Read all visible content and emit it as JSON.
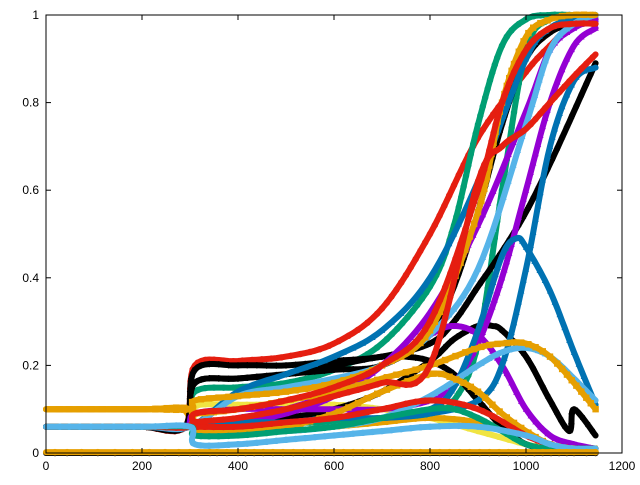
{
  "chart_data": {
    "type": "line",
    "title": "",
    "xlabel": "",
    "ylabel": "",
    "xlim": [
      0,
      1200
    ],
    "ylim": [
      0,
      1
    ],
    "x_ticks": [
      0,
      200,
      400,
      600,
      800,
      1000,
      1200
    ],
    "x_tick_labels": [
      "0",
      "200",
      "400",
      "600",
      "800",
      "1000",
      "1200"
    ],
    "y_ticks": [
      0,
      0.2,
      0.4,
      0.6,
      0.8,
      1
    ],
    "y_tick_labels": [
      "0",
      "0.2",
      "0.4",
      "0.6",
      "0.8",
      "1"
    ],
    "grid": false,
    "legend": "none",
    "colors": {
      "purple": "#9400d3",
      "green": "#009e73",
      "skyblue": "#56b4e9",
      "orange": "#e69f00",
      "yellow": "#f0e442",
      "blue": "#0072b2",
      "red": "#e51e10",
      "black": "#000000"
    },
    "series": [
      {
        "color": "#f0e442",
        "marker": "circle",
        "x": [
          0,
          100,
          200,
          280,
          300,
          320,
          400,
          500,
          600,
          700,
          800,
          900,
          1000,
          1050,
          1100,
          1145
        ],
        "y": [
          0.1,
          0.1,
          0.1,
          0.1,
          0.09,
          0.11,
          0.11,
          0.11,
          0.11,
          0.1,
          0.08,
          0.05,
          0.02,
          0.01,
          0.01,
          0.01
        ]
      },
      {
        "color": "#e69f00",
        "marker": "circle",
        "x": [
          0,
          100,
          200,
          280,
          300,
          320,
          400,
          500,
          600,
          700,
          800,
          900,
          1000,
          1050,
          1100,
          1145
        ],
        "y": [
          0.1,
          0.1,
          0.1,
          0.1,
          0.08,
          0.05,
          0.05,
          0.05,
          0.06,
          0.07,
          0.08,
          0.07,
          0.04,
          0.02,
          0.01,
          0.01
        ]
      },
      {
        "color": "#e51e10",
        "marker": "circle",
        "x": [
          0,
          100,
          200,
          290,
          310,
          400,
          500,
          600,
          700,
          800,
          900,
          1000,
          1050,
          1100,
          1145
        ],
        "y": [
          0.06,
          0.06,
          0.06,
          0.06,
          0.2,
          0.21,
          0.22,
          0.25,
          0.33,
          0.5,
          0.72,
          0.87,
          0.93,
          0.98,
          0.98
        ]
      },
      {
        "color": "#009e73",
        "marker": "circle",
        "x": [
          0,
          100,
          200,
          290,
          310,
          400,
          500,
          600,
          700,
          800,
          850,
          900,
          950,
          1000,
          1050,
          1100,
          1145
        ],
        "y": [
          0.06,
          0.06,
          0.06,
          0.06,
          0.14,
          0.15,
          0.16,
          0.19,
          0.25,
          0.38,
          0.52,
          0.75,
          0.93,
          0.99,
          1,
          1,
          1
        ]
      },
      {
        "color": "#009e73",
        "marker": "circle",
        "x": [
          0,
          100,
          200,
          290,
          310,
          400,
          500,
          600,
          700,
          800,
          850,
          900,
          950,
          1000,
          1050,
          1100,
          1145
        ],
        "y": [
          0.06,
          0.06,
          0.06,
          0.06,
          0.06,
          0.07,
          0.07,
          0.07,
          0.08,
          0.09,
          0.12,
          0.25,
          0.6,
          0.92,
          0.99,
          0.99,
          0.99
        ]
      },
      {
        "color": "#000000",
        "marker": "star",
        "x": [
          0,
          100,
          200,
          290,
          310,
          400,
          500,
          600,
          700,
          800,
          850,
          900,
          950,
          1000,
          1050,
          1100,
          1145
        ],
        "y": [
          0.06,
          0.06,
          0.06,
          0.06,
          0.16,
          0.17,
          0.18,
          0.19,
          0.2,
          0.27,
          0.38,
          0.55,
          0.75,
          0.9,
          0.96,
          0.98,
          0.98
        ]
      },
      {
        "color": "#000000",
        "marker": "star",
        "x": [
          0,
          100,
          200,
          290,
          310,
          400,
          500,
          600,
          700,
          800,
          850,
          900,
          950,
          1000,
          1050,
          1100,
          1145
        ],
        "y": [
          0.06,
          0.06,
          0.06,
          0.06,
          0.19,
          0.2,
          0.2,
          0.21,
          0.22,
          0.25,
          0.3,
          0.38,
          0.46,
          0.55,
          0.66,
          0.78,
          0.89
        ]
      },
      {
        "color": "#000000",
        "marker": "star",
        "x": [
          0,
          100,
          200,
          290,
          310,
          400,
          500,
          600,
          700,
          750,
          800,
          850,
          900,
          950,
          1000,
          1050,
          1100,
          1145
        ],
        "y": [
          0.06,
          0.06,
          0.06,
          0.06,
          0.16,
          0.17,
          0.18,
          0.2,
          0.22,
          0.22,
          0.21,
          0.18,
          0.12,
          0.06,
          0.02,
          0.01,
          0.01,
          0.01
        ]
      },
      {
        "color": "#000000",
        "marker": "star",
        "x": [
          0,
          100,
          200,
          300,
          400,
          500,
          600,
          700,
          800,
          850,
          900,
          930,
          950,
          1000,
          1050,
          1090,
          1100,
          1145
        ],
        "y": [
          0.06,
          0.06,
          0.06,
          0.06,
          0.07,
          0.08,
          0.1,
          0.14,
          0.21,
          0.26,
          0.29,
          0.29,
          0.28,
          0.22,
          0.12,
          0.05,
          0.1,
          0.04
        ]
      },
      {
        "color": "#9400d3",
        "marker": "triangle",
        "x": [
          0,
          100,
          200,
          290,
          310,
          400,
          500,
          600,
          700,
          800,
          850,
          900,
          950,
          1000,
          1050,
          1100,
          1145
        ],
        "y": [
          0.06,
          0.06,
          0.06,
          0.06,
          0.09,
          0.1,
          0.1,
          0.1,
          0.1,
          0.12,
          0.16,
          0.25,
          0.4,
          0.6,
          0.8,
          0.93,
          0.97
        ]
      },
      {
        "color": "#9400d3",
        "marker": "triangle",
        "x": [
          0,
          100,
          200,
          300,
          400,
          500,
          600,
          700,
          800,
          850,
          900,
          950,
          1000,
          1050,
          1100,
          1145
        ],
        "y": [
          0.06,
          0.06,
          0.06,
          0.06,
          0.08,
          0.1,
          0.14,
          0.2,
          0.27,
          0.29,
          0.27,
          0.2,
          0.1,
          0.04,
          0.02,
          0.01
        ]
      },
      {
        "color": "#9400d3",
        "marker": "triangle",
        "x": [
          0,
          200,
          300,
          400,
          500,
          600,
          700,
          800,
          900,
          1000,
          1050,
          1100,
          1145
        ],
        "y": [
          0.06,
          0.06,
          0.06,
          0.07,
          0.09,
          0.13,
          0.2,
          0.32,
          0.52,
          0.78,
          0.92,
          0.97,
          0.99
        ]
      },
      {
        "color": "#0072b2",
        "marker": "triangle",
        "x": [
          0,
          100,
          200,
          300,
          400,
          500,
          600,
          700,
          800,
          850,
          900,
          950,
          980,
          1000,
          1050,
          1100,
          1145
        ],
        "y": [
          0.06,
          0.06,
          0.06,
          0.06,
          0.07,
          0.07,
          0.08,
          0.08,
          0.1,
          0.15,
          0.28,
          0.45,
          0.49,
          0.47,
          0.37,
          0.23,
          0.11
        ]
      },
      {
        "color": "#0072b2",
        "marker": "triangle",
        "x": [
          0,
          200,
          300,
          400,
          500,
          600,
          700,
          800,
          900,
          950,
          1000,
          1050,
          1100,
          1145
        ],
        "y": [
          0.06,
          0.06,
          0.06,
          0.07,
          0.07,
          0.08,
          0.08,
          0.09,
          0.12,
          0.2,
          0.42,
          0.7,
          0.85,
          0.88
        ]
      },
      {
        "color": "#0072b2",
        "marker": "triangle",
        "x": [
          0,
          200,
          300,
          400,
          500,
          600,
          700,
          800,
          900,
          1000,
          1050,
          1100,
          1145
        ],
        "y": [
          0.06,
          0.06,
          0.06,
          0.14,
          0.18,
          0.22,
          0.28,
          0.4,
          0.62,
          0.9,
          0.97,
          0.99,
          1
        ]
      },
      {
        "color": "#56b4e9",
        "marker": "triangle",
        "x": [
          0,
          100,
          200,
          300,
          400,
          500,
          600,
          700,
          800,
          900,
          950,
          1000,
          1050,
          1100,
          1145
        ],
        "y": [
          0.06,
          0.06,
          0.06,
          0.06,
          0.05,
          0.05,
          0.06,
          0.08,
          0.13,
          0.2,
          0.23,
          0.24,
          0.22,
          0.17,
          0.12
        ]
      },
      {
        "color": "#56b4e9",
        "marker": "triangle",
        "x": [
          0,
          200,
          300,
          400,
          500,
          600,
          700,
          800,
          900,
          1000,
          1050,
          1100,
          1145
        ],
        "y": [
          0.06,
          0.06,
          0.06,
          0.13,
          0.15,
          0.17,
          0.2,
          0.27,
          0.42,
          0.75,
          0.92,
          0.98,
          1
        ]
      },
      {
        "color": "#e69f00",
        "marker": "square",
        "x": [
          0,
          200,
          300,
          310,
          400,
          500,
          600,
          700,
          800,
          900,
          950,
          1000,
          1050,
          1100,
          1145
        ],
        "y": [
          0.1,
          0.1,
          0.1,
          0.12,
          0.13,
          0.14,
          0.16,
          0.2,
          0.28,
          0.55,
          0.8,
          0.95,
          0.99,
          1,
          1
        ]
      },
      {
        "color": "#e69f00",
        "marker": "square",
        "x": [
          0,
          200,
          300,
          310,
          400,
          500,
          600,
          700,
          800,
          900,
          950,
          1000,
          1050,
          1100,
          1145
        ],
        "y": [
          0.1,
          0.1,
          0.1,
          0.09,
          0.1,
          0.12,
          0.14,
          0.17,
          0.2,
          0.24,
          0.25,
          0.25,
          0.22,
          0.16,
          0.1
        ]
      },
      {
        "color": "#e69f00",
        "marker": "square",
        "x": [
          0,
          200,
          300,
          310,
          400,
          500,
          600,
          700,
          800,
          850,
          900,
          950,
          1000,
          1050,
          1100,
          1145
        ],
        "y": [
          0.1,
          0.1,
          0.1,
          0.05,
          0.05,
          0.06,
          0.09,
          0.14,
          0.18,
          0.17,
          0.14,
          0.09,
          0.05,
          0.02,
          0.01,
          0.01
        ]
      },
      {
        "color": "#e51e10",
        "marker": "circle",
        "x": [
          0,
          200,
          300,
          310,
          400,
          500,
          600,
          700,
          800,
          900,
          950,
          1000,
          1050,
          1100,
          1145
        ],
        "y": [
          0.06,
          0.06,
          0.06,
          0.09,
          0.1,
          0.12,
          0.15,
          0.2,
          0.3,
          0.6,
          0.8,
          0.92,
          0.97,
          0.98,
          0.98
        ]
      },
      {
        "color": "#e51e10",
        "marker": "circle",
        "x": [
          0,
          200,
          300,
          310,
          400,
          500,
          600,
          700,
          800,
          900,
          1000,
          1050,
          1100,
          1145
        ],
        "y": [
          0.06,
          0.06,
          0.06,
          0.06,
          0.06,
          0.07,
          0.08,
          0.1,
          0.12,
          0.1,
          0.04,
          0.02,
          0.01,
          0.01
        ]
      },
      {
        "color": "#e51e10",
        "marker": "circle",
        "x": [
          0,
          200,
          300,
          310,
          400,
          500,
          600,
          700,
          800,
          900,
          950,
          1000,
          1050,
          1100,
          1145
        ],
        "y": [
          0.06,
          0.06,
          0.06,
          0.07,
          0.08,
          0.1,
          0.13,
          0.16,
          0.2,
          0.62,
          0.7,
          0.74,
          0.8,
          0.86,
          0.91
        ]
      },
      {
        "color": "#009e73",
        "marker": "circle",
        "x": [
          0,
          200,
          300,
          310,
          400,
          500,
          600,
          700,
          800,
          850,
          900,
          950,
          1000,
          1050,
          1100,
          1145
        ],
        "y": [
          0.06,
          0.06,
          0.06,
          0.04,
          0.04,
          0.05,
          0.06,
          0.08,
          0.1,
          0.1,
          0.08,
          0.05,
          0.02,
          0.01,
          0.01,
          0.01
        ]
      },
      {
        "color": "#56b4e9",
        "marker": "circle",
        "x": [
          0,
          200,
          300,
          310,
          400,
          500,
          600,
          700,
          800,
          900,
          1000,
          1050,
          1100,
          1145
        ],
        "y": [
          0.06,
          0.06,
          0.06,
          0.02,
          0.02,
          0.03,
          0.04,
          0.05,
          0.06,
          0.06,
          0.04,
          0.02,
          0.01,
          0.01
        ]
      },
      {
        "color": "#000000",
        "marker": "circle",
        "x": [
          0,
          300,
          400,
          600,
          800,
          1000,
          1145
        ],
        "y": [
          0,
          0,
          0,
          0,
          0,
          0,
          0
        ]
      },
      {
        "color": "#e69f00",
        "marker": "circle",
        "x": [
          0,
          300,
          400,
          600,
          800,
          1000,
          1145
        ],
        "y": [
          0.002,
          0.002,
          0.002,
          0.002,
          0.002,
          0.002,
          0.002
        ]
      }
    ]
  }
}
